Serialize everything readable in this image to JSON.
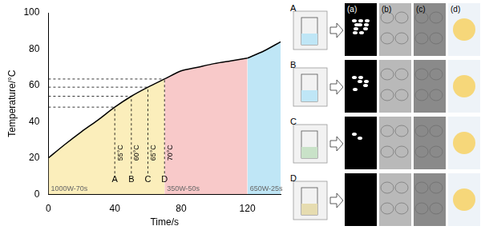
{
  "chart_data": {
    "type": "line",
    "x_label": "Time/s",
    "y_label": "Temperature/°C",
    "x": [
      0,
      10,
      20,
      30,
      40,
      50,
      60,
      70,
      80,
      90,
      100,
      110,
      120,
      130,
      140
    ],
    "series": [
      {
        "name": "1000W-70s",
        "color": "#fbeebb",
        "values": [
          20,
          27.5,
          34.5,
          41,
          48,
          54,
          59,
          63.5,
          null,
          null,
          null,
          null,
          null,
          null,
          null
        ]
      },
      {
        "name": "350W-50s",
        "color": "#f8c9c9",
        "values": [
          null,
          null,
          null,
          null,
          null,
          null,
          null,
          63.5,
          68,
          70,
          72,
          73.5,
          75,
          null,
          null
        ]
      },
      {
        "name": "650W-25s",
        "color": "#bfe6f6",
        "values": [
          null,
          null,
          null,
          null,
          null,
          null,
          null,
          null,
          null,
          null,
          null,
          null,
          75,
          79,
          84
        ]
      }
    ],
    "markers": [
      {
        "label": "A",
        "x": 40,
        "y": 48,
        "temperature": "55°C"
      },
      {
        "label": "B",
        "x": 50,
        "y": 54,
        "temperature": "60°C"
      },
      {
        "label": "C",
        "x": 60,
        "y": 59,
        "temperature": "65°C"
      },
      {
        "label": "D",
        "x": 70,
        "y": 63.5,
        "temperature": "70°C"
      }
    ],
    "xlim": [
      0,
      140
    ],
    "xticks": [
      0,
      40,
      80,
      120
    ],
    "ylim": [
      0,
      100
    ],
    "yticks": [
      0,
      20,
      40,
      60,
      80,
      100
    ],
    "grid": false
  },
  "panels": {
    "rows": [
      "A",
      "B",
      "C",
      "D"
    ],
    "columns": [
      "(a)",
      "(b)",
      "(c)",
      "(d)"
    ]
  }
}
